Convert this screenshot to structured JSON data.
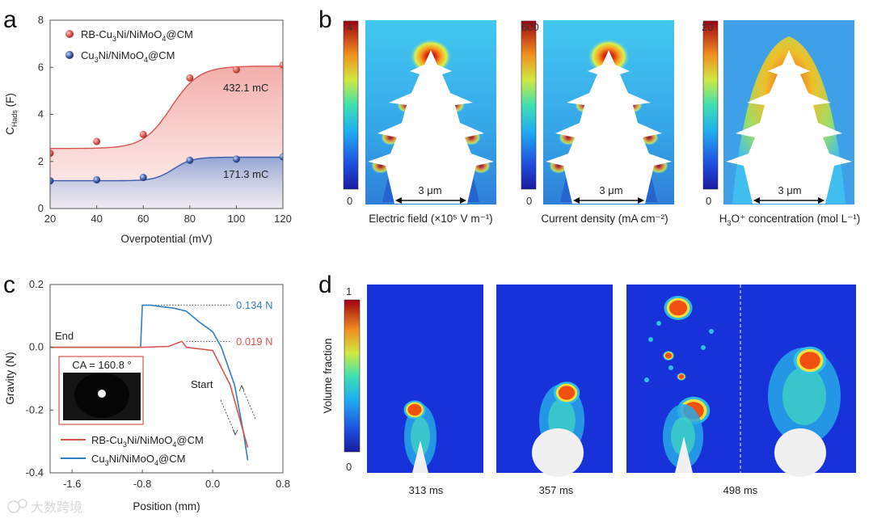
{
  "panels": {
    "a": "a",
    "b": "b",
    "c": "c",
    "d": "d"
  },
  "chart_data": [
    {
      "panel": "a",
      "type": "scatter",
      "xlabel": "Overpotential (mV)",
      "ylabel_main": "C",
      "ylabel_sub": "Hads",
      "ylabel_unit": " (F)",
      "xlim": [
        20,
        120
      ],
      "ylim": [
        0,
        8
      ],
      "xticks": [
        "20",
        "40",
        "60",
        "80",
        "100",
        "120"
      ],
      "yticks": [
        "0",
        "2",
        "4",
        "6",
        "8"
      ],
      "x": [
        20,
        40,
        60,
        80,
        100,
        120
      ],
      "series": [
        {
          "name": "RB-Cu3Ni/NiMoO4@CM",
          "values": [
            2.35,
            2.85,
            3.15,
            5.55,
            5.9,
            6.1
          ],
          "color": "#d9534f",
          "fill": "#f4b6b3"
        },
        {
          "name": "Cu3Ni/NiMoO4@CM",
          "values": [
            1.18,
            1.22,
            1.32,
            2.05,
            2.1,
            2.2
          ],
          "color": "#3b5ba9",
          "fill": "#9fb0d8"
        }
      ],
      "annotations": [
        "432.1 mC",
        "171.3 mC"
      ],
      "legend_position": "top-left"
    },
    {
      "panel": "c",
      "type": "line",
      "xlabel": "Position (mm)",
      "ylabel": "Gravity (N)",
      "xlim": [
        -1.85,
        0.8
      ],
      "ylim": [
        -0.4,
        0.2
      ],
      "xticks": [
        "-1.6",
        "-0.8",
        "0.0",
        "0.8"
      ],
      "yticks": [
        "0.2",
        "0.0",
        "-0.2",
        "-0.4"
      ],
      "series": [
        {
          "name": "RB-Cu3Ni/NiMoO4@CM",
          "color": "#d9534f",
          "x": [
            -1.85,
            -1.6,
            -1.2,
            -0.8,
            -0.5,
            -0.35,
            -0.3,
            0.0,
            0.2,
            0.3,
            0.4
          ],
          "y": [
            0.0,
            0.0,
            0.0,
            0.0,
            0.003,
            0.019,
            0.0,
            -0.01,
            -0.12,
            -0.22,
            -0.32
          ]
        },
        {
          "name": "Cu3Ni/NiMoO4@CM",
          "color": "#2f7fc1",
          "x": [
            -1.85,
            -1.6,
            -1.2,
            -0.82,
            -0.8,
            -0.7,
            -0.6,
            -0.45,
            -0.3,
            -0.15,
            0.0,
            0.1,
            0.25,
            0.35,
            0.4
          ],
          "y": [
            0.0,
            0.0,
            0.0,
            0.0,
            0.134,
            0.134,
            0.13,
            0.125,
            0.115,
            0.08,
            0.05,
            0.0,
            -0.12,
            -0.27,
            -0.36
          ]
        }
      ],
      "annotations": [
        "0.134 N",
        "0.019 N",
        "End",
        "Start"
      ],
      "inset_label": "CA = 160.8 °",
      "legend_position": "bottom-right"
    }
  ],
  "panel_b": {
    "maps": [
      {
        "colorbar_max": "4",
        "colorbar_min": "0",
        "scale": "3 μm",
        "label": "Electric field (×10⁵ V m⁻¹)"
      },
      {
        "colorbar_max": "600",
        "colorbar_min": "0",
        "scale": "3 μm",
        "label": "Current density (mA cm⁻²)"
      },
      {
        "colorbar_max": "20",
        "colorbar_min": "0",
        "scale": "3 μm",
        "label_main": "H",
        "label_sub": "3",
        "label_rest": "O⁺ concentration (mol L⁻¹)"
      }
    ]
  },
  "panel_d": {
    "colorbar_max": "1",
    "colorbar_min": "0",
    "ylabel": "Volume fraction",
    "times": [
      "313 ms",
      "357 ms",
      "498 ms"
    ]
  },
  "watermark": "大数跨境"
}
